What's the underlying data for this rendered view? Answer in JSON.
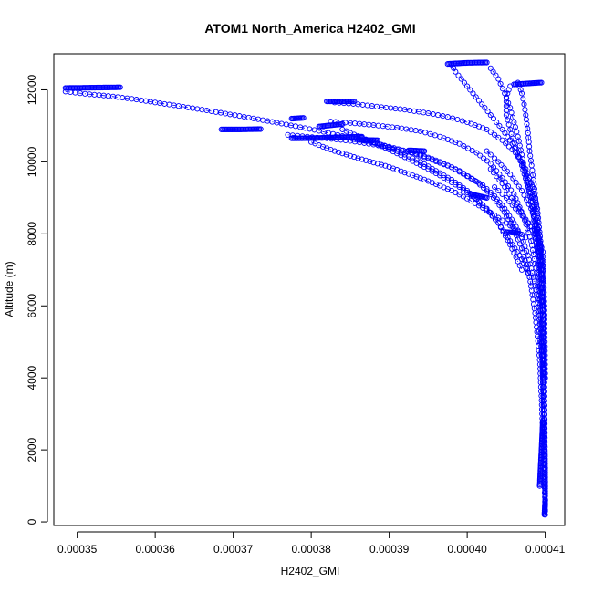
{
  "chart_data": {
    "type": "scatter",
    "title": "ATOM1 North_America H2402_GMI",
    "xlabel": "H2402_GMI",
    "ylabel": "Altitude (m)",
    "xlim": [
      0.000347,
      0.0004125
    ],
    "ylim": [
      -100,
      13000
    ],
    "x_ticks": [
      0.00035,
      0.00036,
      0.00037,
      0.00038,
      0.00039,
      0.0004,
      0.00041
    ],
    "x_tick_labels": [
      "0.00035",
      "0.00036",
      "0.00037",
      "0.00038",
      "0.00039",
      "0.00040",
      "0.00041"
    ],
    "y_ticks": [
      0,
      2000,
      4000,
      6000,
      8000,
      10000,
      12000
    ],
    "y_tick_labels": [
      "0",
      "2000",
      "4000",
      "6000",
      "8000",
      "10000",
      "12000"
    ],
    "grid": false,
    "legend": "none",
    "marker": "open-circle",
    "line_style": "dash-dot",
    "color": "#0000ff",
    "series": [
      {
        "x": [
          0.00041,
          0.00041,
          0.0004098,
          0.0004096,
          0.0004093,
          0.000409,
          0.0004085,
          0.0004078,
          0.000407,
          0.000406,
          0.0004048,
          0.0004035,
          0.000402,
          0.0004,
          0.000398,
          0.0003955,
          0.000393,
          0.00039,
          0.000387,
          0.000384,
          0.000381,
          0.000378,
          0.000375,
          0.000372,
          0.000369,
          0.000366,
          0.000363,
          0.00036,
          0.000357,
          0.000354,
          0.000351,
          0.0003485
        ],
        "y": [
          200,
          1500,
          3000,
          4500,
          5500,
          6200,
          6800,
          7400,
          7900,
          8300,
          8700,
          9050,
          9350,
          9600,
          9850,
          10050,
          10250,
          10420,
          10580,
          10720,
          10860,
          10990,
          11110,
          11230,
          11340,
          11450,
          11550,
          11650,
          11750,
          11830,
          11890,
          11950
        ]
      },
      {
        "x": [
          0.00041,
          0.0004097,
          0.0004093,
          0.0004087,
          0.000408,
          0.000407,
          0.0004058,
          0.0004045,
          0.000403,
          0.0004012,
          0.000399,
          0.0003965,
          0.000394,
          0.000391,
          0.000388,
          0.000385,
          0.000382,
          0.0003795,
          0.000377
        ],
        "y": [
          300,
          2500,
          4500,
          5800,
          6800,
          7600,
          8200,
          8700,
          9100,
          9450,
          9750,
          10000,
          10200,
          10350,
          10480,
          10580,
          10650,
          10700,
          10750
        ]
      },
      {
        "x": [
          0.00041,
          0.0004098,
          0.0004095,
          0.000409,
          0.0004082,
          0.0004072,
          0.000406,
          0.0004045,
          0.000403,
          0.0004012,
          0.000399,
          0.0003965,
          0.000394,
          0.000391,
          0.000388,
          0.000385,
          0.0003825
        ],
        "y": [
          500,
          3500,
          5500,
          6800,
          7800,
          8500,
          9100,
          9550,
          9950,
          10250,
          10500,
          10700,
          10850,
          10950,
          11020,
          11080,
          11120
        ]
      },
      {
        "x": [
          0.00041,
          0.0004099,
          0.0004097,
          0.0004094,
          0.000409,
          0.0004084,
          0.0004075,
          0.0004062,
          0.0004045,
          0.0004025,
          0.0004,
          0.0003975,
          0.000395,
          0.000392,
          0.000389,
          0.000386,
          0.000383
        ],
        "y": [
          800,
          4000,
          6500,
          7800,
          8700,
          9300,
          9800,
          10250,
          10600,
          10900,
          11100,
          11250,
          11350,
          11450,
          11520,
          11600,
          11650
        ]
      },
      {
        "x": [
          0.00041,
          0.0004098,
          0.0004095,
          0.000409,
          0.0004085,
          0.0004078,
          0.000407,
          0.0004058,
          0.0004045,
          0.000403,
          0.0004015,
          0.0004,
          0.0003985,
          0.000398
        ],
        "y": [
          1000,
          5000,
          7000,
          8000,
          8800,
          9500,
          10000,
          10500,
          10900,
          11300,
          11700,
          12100,
          12500,
          12700
        ]
      },
      {
        "x": [
          0.0004098,
          0.0004095,
          0.000409,
          0.0004085,
          0.000408,
          0.0004078,
          0.0004075,
          0.0004073,
          0.000407,
          0.0004067,
          0.0004065
        ],
        "y": [
          4000,
          7000,
          8500,
          9500,
          10300,
          10800,
          11300,
          11600,
          11900,
          12100,
          12200
        ]
      },
      {
        "x": [
          0.0004095,
          0.000409,
          0.0004085,
          0.0004078,
          0.000407,
          0.0004062,
          0.0004055,
          0.000405,
          0.000405,
          0.0004055
        ],
        "y": [
          6000,
          7500,
          8500,
          9300,
          9900,
          10400,
          10900,
          11300,
          11800,
          12100
        ]
      },
      {
        "x": [
          0.0004098,
          0.0004094,
          0.0004088,
          0.0004082,
          0.0004075,
          0.000407,
          0.0004065,
          0.000406,
          0.0004055,
          0.0004048,
          0.000404,
          0.000403
        ],
        "y": [
          5000,
          7000,
          8200,
          9000,
          9600,
          10200,
          10700,
          11100,
          11500,
          11900,
          12300,
          12600
        ]
      },
      {
        "x": [
          0.00038,
          0.0003815,
          0.000383,
          0.0003845,
          0.000386,
          0.000388,
          0.00039,
          0.000392,
          0.000394,
          0.000396,
          0.000398,
          0.0004,
          0.000402,
          0.000404,
          0.000406,
          0.0004075
        ],
        "y": [
          10550,
          10420,
          10300,
          10200,
          10100,
          9980,
          9860,
          9700,
          9550,
          9380,
          9200,
          8980,
          8720,
          8450,
          8150,
          7900
        ]
      },
      {
        "x": [
          0.000384,
          0.0003855,
          0.000387,
          0.0003885,
          0.00039,
          0.0003915,
          0.000393,
          0.000395,
          0.000397,
          0.000399,
          0.000401,
          0.0004025,
          0.000404,
          0.0004055,
          0.000407,
          0.000408
        ],
        "y": [
          10900,
          10760,
          10620,
          10480,
          10340,
          10180,
          10020,
          9800,
          9560,
          9300,
          9000,
          8700,
          8300,
          7800,
          7300,
          6800
        ]
      },
      {
        "x": [
          0.000386,
          0.000388,
          0.00039,
          0.000392,
          0.000394,
          0.000396,
          0.000398,
          0.0004,
          0.000402,
          0.000404,
          0.0004055,
          0.000407
        ],
        "y": [
          10700,
          10550,
          10400,
          10200,
          10000,
          9750,
          9500,
          9200,
          8800,
          8300,
          7700,
          7000
        ]
      },
      {
        "x": [
          0.000403,
          0.0004045,
          0.000406,
          0.0004075,
          0.000409,
          0.0004097,
          0.0004099,
          0.00041
        ],
        "y": [
          9800,
          9400,
          8900,
          8400,
          8000,
          7500,
          6000,
          4000
        ]
      },
      {
        "x": [
          0.0004025,
          0.000404,
          0.0004055,
          0.000407,
          0.0004082,
          0.0004092,
          0.0004097
        ],
        "y": [
          10300,
          10000,
          9650,
          9200,
          8700,
          8000,
          7000
        ]
      },
      {
        "x": [
          0.0004035,
          0.000405,
          0.0004062,
          0.0004075,
          0.0004086,
          0.0004093,
          0.0004098
        ],
        "y": [
          9300,
          9000,
          8700,
          8400,
          8000,
          7400,
          6600
        ]
      }
    ],
    "clusters": [
      {
        "x": [
          0.0003485,
          0.000352,
          0.0003555
        ],
        "y": [
          12050,
          12060,
          12070
        ]
      },
      {
        "x": [
          0.0003685,
          0.000371,
          0.0003735
        ],
        "y": [
          10900,
          10900,
          10910
        ]
      },
      {
        "x": [
          0.0003775,
          0.000379
        ],
        "y": [
          11200,
          11220
        ]
      },
      {
        "x": [
          0.000381,
          0.000384
        ],
        "y": [
          10980,
          11050
        ]
      },
      {
        "x": [
          0.000382,
          0.0003855
        ],
        "y": [
          11680,
          11680
        ]
      },
      {
        "x": [
          0.0003775,
          0.0003805,
          0.0003835,
          0.0003865
        ],
        "y": [
          10650,
          10660,
          10680,
          10700
        ]
      },
      {
        "x": [
          0.000386,
          0.0003885
        ],
        "y": [
          10610,
          10600
        ]
      },
      {
        "x": [
          0.0003925,
          0.0003945
        ],
        "y": [
          10320,
          10300
        ]
      },
      {
        "x": [
          0.0003975,
          0.0004,
          0.0004025
        ],
        "y": [
          12720,
          12750,
          12760
        ]
      },
      {
        "x": [
          0.000406,
          0.000408,
          0.0004095
        ],
        "y": [
          12150,
          12180,
          12200
        ]
      },
      {
        "x": [
          0.0004005,
          0.0004025
        ],
        "y": [
          9100,
          9000
        ]
      },
      {
        "x": [
          0.000405,
          0.0004065
        ],
        "y": [
          8050,
          8020
        ]
      },
      {
        "x": [
          0.0004093,
          0.0004097
        ],
        "y": [
          1000,
          2800
        ]
      },
      {
        "x": [
          0.0004099,
          0.00041
        ],
        "y": [
          200,
          600
        ]
      }
    ]
  }
}
